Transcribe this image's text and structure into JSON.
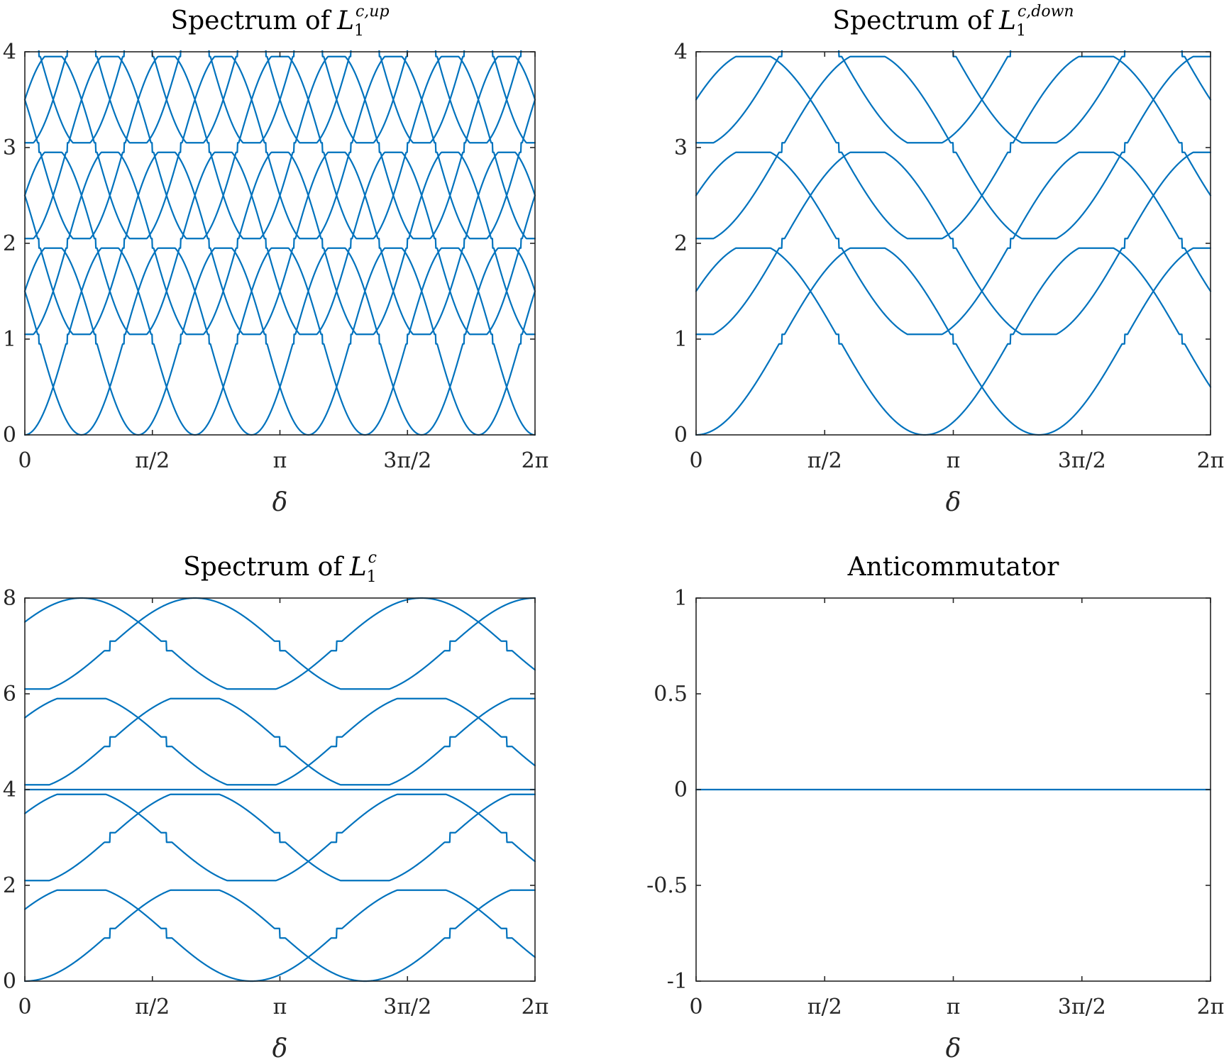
{
  "colors": {
    "series": "#0072BD",
    "axes": "#262626",
    "background": "#ffffff"
  },
  "chart_data": [
    {
      "id": "up",
      "type": "line",
      "title": {
        "prefix": "Spectrum of",
        "symbol": "L",
        "subscript": "1",
        "superscript": "c,up"
      },
      "xlabel": "δ",
      "ylabel": "",
      "xlim": [
        0,
        6.2832
      ],
      "ylim": [
        0,
        4
      ],
      "xticks": [
        0,
        1.5708,
        3.1416,
        4.7124,
        6.2832
      ],
      "xtick_labels": [
        "0",
        "π/2",
        "π",
        "3π/2",
        "2π"
      ],
      "yticks": [
        0,
        1,
        2,
        3,
        4
      ],
      "ytick_labels": [
        "0",
        "1",
        "2",
        "3",
        "4"
      ],
      "grid": false,
      "legend": "none",
      "series_model": {
        "kind": "band-sinusoids",
        "k": 3,
        "cos_shifts": [
          0,
          2.0944,
          4.1888
        ],
        "levels": [
          0,
          1,
          2,
          3
        ],
        "gap": 0.05
      }
    },
    {
      "id": "down",
      "type": "line",
      "title": {
        "prefix": "Spectrum of",
        "symbol": "L",
        "subscript": "1",
        "superscript": "c,down"
      },
      "xlabel": "δ",
      "ylabel": "",
      "xlim": [
        0,
        6.2832
      ],
      "ylim": [
        0,
        4
      ],
      "xticks": [
        0,
        1.5708,
        3.1416,
        4.7124,
        6.2832
      ],
      "xtick_labels": [
        "0",
        "π/2",
        "π",
        "3π/2",
        "2π"
      ],
      "yticks": [
        0,
        1,
        2,
        3,
        4
      ],
      "ytick_labels": [
        "0",
        "1",
        "2",
        "3",
        "4"
      ],
      "grid": false,
      "legend": "none",
      "series_model": {
        "kind": "band-sinusoids",
        "k": 1.5,
        "cos_shifts": [
          0,
          2.0944
        ],
        "levels": [
          0,
          1,
          2,
          3
        ],
        "gap": 0.05
      }
    },
    {
      "id": "full",
      "type": "line",
      "title": {
        "prefix": "Spectrum of",
        "symbol": "L",
        "subscript": "1",
        "superscript": "c"
      },
      "xlabel": "δ",
      "ylabel": "",
      "xlim": [
        0,
        6.2832
      ],
      "ylim": [
        0,
        8
      ],
      "xticks": [
        0,
        1.5708,
        3.1416,
        4.7124,
        6.2832
      ],
      "xtick_labels": [
        "0",
        "π/2",
        "π",
        "3π/2",
        "2π"
      ],
      "yticks": [
        0,
        2,
        4,
        6,
        8
      ],
      "ytick_labels": [
        "0",
        "2",
        "4",
        "6",
        "8"
      ],
      "grid": false,
      "legend": "none",
      "series_model": {
        "kind": "band-sinusoids",
        "k": 1.5,
        "cos_shifts": [
          0,
          2.0944
        ],
        "levels": [
          0,
          2,
          4,
          6
        ],
        "gap": 0.1
      },
      "extra_series": [
        {
          "x": [
            0,
            6.2832
          ],
          "y": [
            4,
            4
          ]
        }
      ]
    },
    {
      "id": "anti",
      "type": "line",
      "title": {
        "prefix": "Anticommutator",
        "symbol": "",
        "subscript": "",
        "superscript": ""
      },
      "xlabel": "δ",
      "ylabel": "",
      "xlim": [
        0,
        6.2832
      ],
      "ylim": [
        -1,
        1
      ],
      "xticks": [
        0,
        1.5708,
        3.1416,
        4.7124,
        6.2832
      ],
      "xtick_labels": [
        "0",
        "π/2",
        "π",
        "3π/2",
        "2π"
      ],
      "yticks": [
        -1,
        -0.5,
        0,
        0.5,
        1
      ],
      "ytick_labels": [
        "-1",
        "-0.5",
        "0",
        "0.5",
        "1"
      ],
      "grid": false,
      "legend": "none",
      "extra_series": [
        {
          "x": [
            0,
            6.2832
          ],
          "y": [
            0,
            0
          ]
        }
      ]
    }
  ]
}
